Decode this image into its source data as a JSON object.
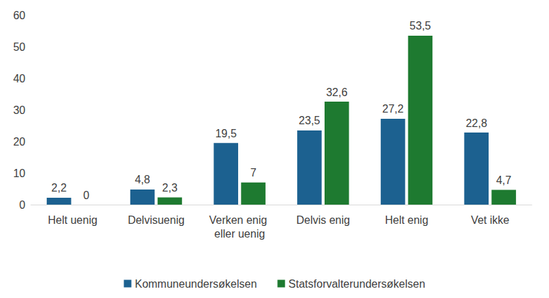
{
  "chart_data": {
    "type": "bar",
    "categories": [
      "Helt uenig",
      "Delvisuenig",
      "Verken enig eller uenig",
      "Delvis enig",
      "Helt enig",
      "Vet ikke"
    ],
    "series": [
      {
        "name": "Kommuneundersøkelsen",
        "color": "#1c6190",
        "values": [
          2.2,
          4.8,
          19.5,
          23.5,
          27.2,
          22.8
        ],
        "value_labels": [
          "2,2",
          "4,8",
          "19,5",
          "23,5",
          "27,2",
          "22,8"
        ]
      },
      {
        "name": "Statsforvalterundersøkelsen",
        "color": "#1e7a30",
        "values": [
          0,
          2.3,
          7,
          32.6,
          53.5,
          4.7
        ],
        "value_labels": [
          "0",
          "2,3",
          "7",
          "32,6",
          "53,5",
          "4,7"
        ]
      }
    ],
    "ylim": [
      0,
      60
    ],
    "yticks": [
      0,
      10,
      20,
      30,
      40,
      50,
      60
    ],
    "grid": false,
    "legend": "bottom",
    "data_labels": true
  }
}
